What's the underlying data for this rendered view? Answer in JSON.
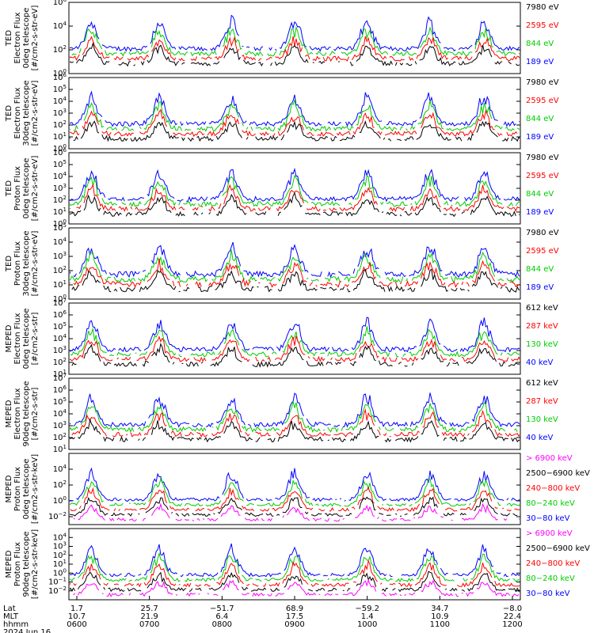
{
  "chart_data": {
    "type": "line",
    "date": "2024 Jun 16",
    "x": {
      "label_rows": [
        "Lat",
        "MLT",
        "hhmm"
      ],
      "ticks": [
        {
          "lat": "1.7",
          "mlt": "10.7",
          "hhmm": "0600"
        },
        {
          "lat": "25.7",
          "mlt": "21.9",
          "hhmm": "0700"
        },
        {
          "lat": "−51.7",
          "mlt": "6.4",
          "hhmm": "0800"
        },
        {
          "lat": "68.9",
          "mlt": "17.5",
          "hhmm": "0900"
        },
        {
          "lat": "−59.2",
          "mlt": "1.4",
          "hhmm": "1000"
        },
        {
          "lat": "34.7",
          "mlt": "10.9",
          "hhmm": "1100"
        },
        {
          "lat": "−8.0",
          "mlt": "22.4",
          "hhmm": "1200"
        }
      ]
    },
    "panels": [
      {
        "ylabel": [
          "TED",
          "Electron Flux",
          "0deg telescope",
          "[#/cm2-s-str-eV]"
        ],
        "ylim_exp": [
          0,
          6
        ],
        "tick_exps": [
          0,
          2,
          4,
          6
        ],
        "channels": [
          {
            "name": "7980 eV",
            "color": "#000000"
          },
          {
            "name": "2595 eV",
            "color": "#ff0000"
          },
          {
            "name": "844 eV",
            "color": "#00cc00"
          },
          {
            "name": "189 eV",
            "color": "#0000ff"
          }
        ]
      },
      {
        "ylabel": [
          "TED",
          "Electron Flux",
          "30deg telescope",
          "[#/cm2-s-str-eV]"
        ],
        "ylim_exp": [
          0,
          6
        ],
        "tick_exps": [
          0,
          1,
          2,
          3,
          4,
          5,
          6
        ],
        "channels": [
          {
            "name": "7980 eV",
            "color": "#000000"
          },
          {
            "name": "2595 eV",
            "color": "#ff0000"
          },
          {
            "name": "844 eV",
            "color": "#00cc00"
          },
          {
            "name": "189 eV",
            "color": "#0000ff"
          }
        ]
      },
      {
        "ylabel": [
          "TED",
          "Proton Flux",
          "0deg telescope",
          "[#/cm2-s-str-eV]"
        ],
        "ylim_exp": [
          0,
          6
        ],
        "tick_exps": [
          0,
          1,
          2,
          3,
          4,
          5,
          6
        ],
        "channels": [
          {
            "name": "7980 eV",
            "color": "#000000"
          },
          {
            "name": "2595 eV",
            "color": "#ff0000"
          },
          {
            "name": "844 eV",
            "color": "#00cc00"
          },
          {
            "name": "189 eV",
            "color": "#0000ff"
          }
        ]
      },
      {
        "ylabel": [
          "TED",
          "Proton Flux",
          "30deg telescope",
          "[#/cm2-s-str-eV]"
        ],
        "ylim_exp": [
          0,
          5
        ],
        "tick_exps": [
          0,
          1,
          2,
          3,
          4,
          5
        ],
        "channels": [
          {
            "name": "7980 eV",
            "color": "#000000"
          },
          {
            "name": "2595 eV",
            "color": "#ff0000"
          },
          {
            "name": "844 eV",
            "color": "#00cc00"
          },
          {
            "name": "189 eV",
            "color": "#0000ff"
          }
        ]
      },
      {
        "ylabel": [
          "MEPED",
          "Electron Flux",
          "0deg telescope",
          "[#/cm2-s-str]"
        ],
        "ylim_exp": [
          1,
          7
        ],
        "tick_exps": [
          1,
          2,
          3,
          4,
          5,
          6,
          7
        ],
        "channels": [
          {
            "name": "612 keV",
            "color": "#000000"
          },
          {
            "name": "287 keV",
            "color": "#ff0000"
          },
          {
            "name": "130 keV",
            "color": "#00cc00"
          },
          {
            "name": "40 keV",
            "color": "#0000ff"
          }
        ]
      },
      {
        "ylabel": [
          "MEPED",
          "Electron Flux",
          "90deg telescope",
          "[#/cm2-s-str]"
        ],
        "ylim_exp": [
          1,
          7
        ],
        "tick_exps": [
          1,
          2,
          3,
          4,
          5,
          6,
          7
        ],
        "channels": [
          {
            "name": "612 keV",
            "color": "#000000"
          },
          {
            "name": "287 keV",
            "color": "#ff0000"
          },
          {
            "name": "130 keV",
            "color": "#00cc00"
          },
          {
            "name": "40 keV",
            "color": "#0000ff"
          }
        ]
      },
      {
        "ylabel": [
          "MEPED",
          "Proton Flux",
          "0deg telescope",
          "[#/cm2-s-str-keV]"
        ],
        "ylim_exp": [
          -3,
          6
        ],
        "tick_exps": [
          -2,
          0,
          2,
          4
        ],
        "channels": [
          {
            "name": "> 6900 keV",
            "color": "#ff00ff"
          },
          {
            "name": "2500−6900 keV",
            "color": "#000000"
          },
          {
            "name": "240−800 keV",
            "color": "#ff0000"
          },
          {
            "name": "80−240 keV",
            "color": "#00cc00"
          },
          {
            "name": "30−80 keV",
            "color": "#0000ff"
          }
        ]
      },
      {
        "ylabel": [
          "MEPED",
          "Proton Flux",
          "90deg telescope",
          "[#/cm2-s-str-keV]"
        ],
        "ylim_exp": [
          -3,
          5
        ],
        "tick_exps": [
          -2,
          -1,
          0,
          1,
          2,
          3,
          4
        ],
        "channels": [
          {
            "name": "> 6900 keV",
            "color": "#ff00ff"
          },
          {
            "name": "2500−6900 keV",
            "color": "#000000"
          },
          {
            "name": "240−800 keV",
            "color": "#ff0000"
          },
          {
            "name": "80−240 keV",
            "color": "#00cc00"
          },
          {
            "name": "30−80 keV",
            "color": "#0000ff"
          }
        ]
      }
    ],
    "colors": {
      "black": "#000000",
      "red": "#ff0000",
      "green": "#00cc00",
      "blue": "#0000ff",
      "magenta": "#ff00ff"
    }
  }
}
